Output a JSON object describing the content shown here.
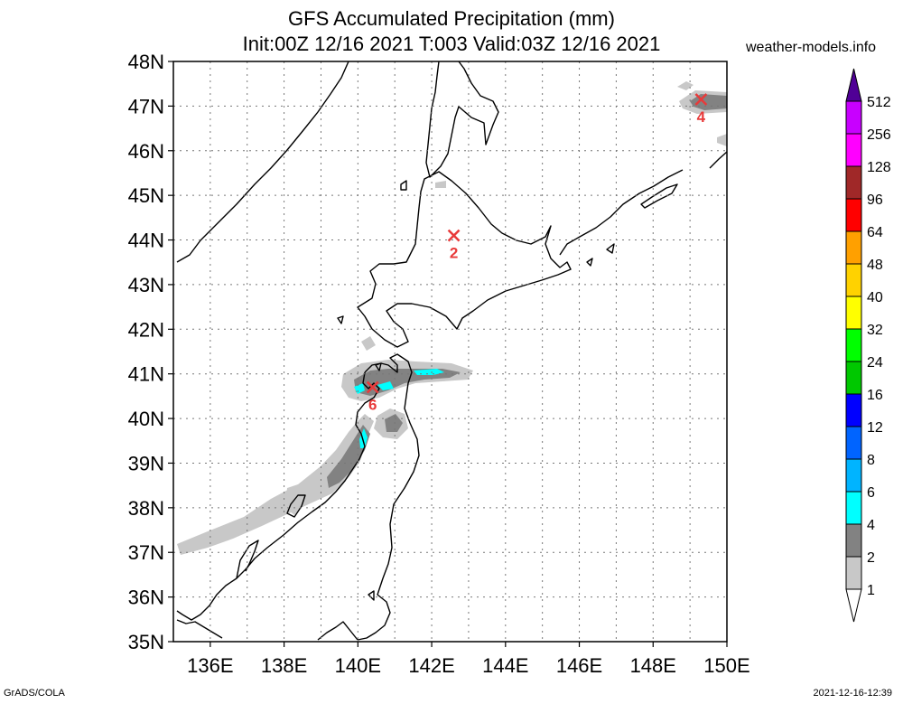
{
  "header": {
    "title_line1": "GFS Accumulated Precipitation (mm)",
    "title_line2": "Init:00Z 12/16 2021 T:003 Valid:03Z 12/16 2021",
    "site": "weather-models.info"
  },
  "footer": {
    "left": "GrADS/COLA",
    "right": "2021-12-16-12:39"
  },
  "map": {
    "lat_labels": [
      "48N",
      "47N",
      "46N",
      "45N",
      "44N",
      "43N",
      "42N",
      "41N",
      "40N",
      "39N",
      "38N",
      "37N",
      "36N",
      "35N"
    ],
    "lon_labels": [
      "136E",
      "138E",
      "140E",
      "142E",
      "144E",
      "146E",
      "148E",
      "150E"
    ],
    "extent": {
      "lon_min": 135,
      "lon_max": 150,
      "lat_min": 35,
      "lat_max": 48
    },
    "markers": [
      {
        "label": "4",
        "lon": 149.3,
        "lat": 47.15
      },
      {
        "label": "2",
        "lon": 142.6,
        "lat": 44.1
      },
      {
        "label": "6",
        "lon": 140.4,
        "lat": 40.7
      }
    ],
    "marker_color": "#e83a3a",
    "precip_colors": {
      "1-2": "#c8c8c8",
      "2-4": "#828282",
      "4-6": "#00ffff"
    }
  },
  "legend": {
    "levels": [
      "1",
      "2",
      "4",
      "6",
      "8",
      "12",
      "16",
      "24",
      "32",
      "40",
      "48",
      "64",
      "96",
      "128",
      "256",
      "512"
    ],
    "colors": [
      "#c8c8c8",
      "#828282",
      "#00ffff",
      "#00b4ff",
      "#0064ff",
      "#0000ff",
      "#00c800",
      "#00ff00",
      "#ffff00",
      "#ffd200",
      "#ffa000",
      "#ff0000",
      "#a02828",
      "#ff00ff",
      "#c800ff",
      "#8c00c8",
      "#500096"
    ]
  }
}
